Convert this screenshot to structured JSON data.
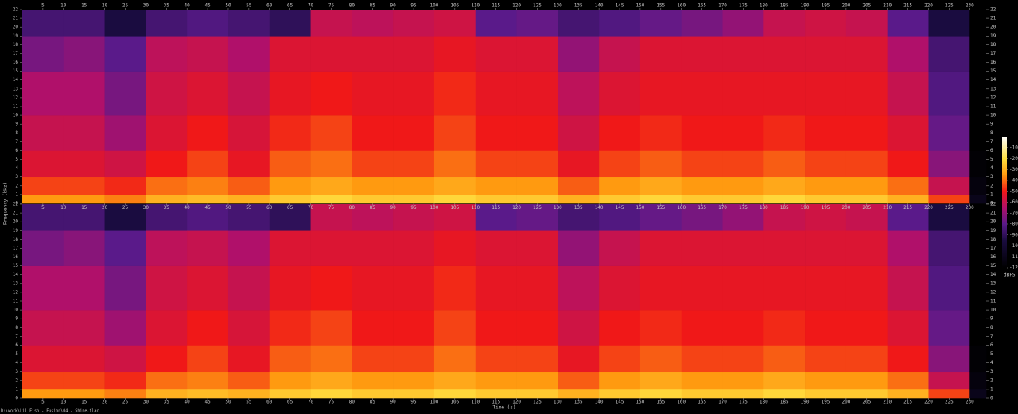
{
  "chart_data": {
    "type": "spectrogram",
    "xlabel": "Time (s)",
    "ylabel": "Frequency (kHz)",
    "colorbar_label": "dBFS",
    "footer": "D:\\work\\Lil Fish - Fusion\\04 - Shine.flac",
    "xlim": [
      0,
      234
    ],
    "xticks": [
      5,
      10,
      15,
      20,
      25,
      30,
      35,
      40,
      45,
      50,
      55,
      60,
      65,
      70,
      75,
      80,
      85,
      90,
      95,
      100,
      105,
      110,
      115,
      120,
      125,
      130,
      135,
      140,
      145,
      150,
      155,
      160,
      165,
      170,
      175,
      180,
      185,
      190,
      195,
      200,
      205,
      210,
      215,
      220,
      225,
      230
    ],
    "ylim": [
      0,
      22
    ],
    "yticks": [
      0,
      1,
      2,
      3,
      4,
      5,
      6,
      7,
      8,
      9,
      10,
      11,
      12,
      13,
      14,
      15,
      16,
      17,
      18,
      19,
      20,
      21,
      22
    ],
    "zlim": [
      -120,
      0
    ],
    "zticks": [
      -10,
      -20,
      -30,
      -40,
      -50,
      -60,
      -70,
      -80,
      -90,
      -100,
      -110,
      -120
    ],
    "colormap": [
      {
        "value": 0,
        "color": "#ffffff"
      },
      {
        "value": -20,
        "color": "#ffe040"
      },
      {
        "value": -35,
        "color": "#ff9a10"
      },
      {
        "value": -50,
        "color": "#f01818"
      },
      {
        "value": -65,
        "color": "#b0106a"
      },
      {
        "value": -80,
        "color": "#5a1a8a"
      },
      {
        "value": -95,
        "color": "#1a0c40"
      },
      {
        "value": -120,
        "color": "#000000"
      }
    ],
    "time_bins": [
      0,
      10,
      20,
      30,
      40,
      50,
      60,
      70,
      80,
      90,
      100,
      110,
      120,
      130,
      140,
      150,
      160,
      170,
      180,
      190,
      200,
      210,
      220,
      230,
      234
    ],
    "freq_bins": [
      0,
      1,
      3,
      6,
      10,
      15,
      19,
      22
    ],
    "channels": [
      {
        "values": [
          [
            -35,
            -45,
            -55,
            -60,
            -65,
            -75,
            -85
          ],
          [
            -35,
            -45,
            -55,
            -60,
            -65,
            -72,
            -85
          ],
          [
            -38,
            -48,
            -58,
            -68,
            -75,
            -80,
            -95
          ],
          [
            -30,
            -40,
            -50,
            -55,
            -58,
            -62,
            -85
          ],
          [
            -28,
            -38,
            -45,
            -50,
            -55,
            -60,
            -82
          ],
          [
            -30,
            -42,
            -52,
            -56,
            -60,
            -65,
            -85
          ],
          [
            -25,
            -35,
            -42,
            -48,
            -52,
            -55,
            -90
          ],
          [
            -22,
            -32,
            -40,
            -45,
            -50,
            -55,
            -60
          ],
          [
            -25,
            -35,
            -45,
            -50,
            -52,
            -55,
            -62
          ],
          [
            -25,
            -35,
            -45,
            -50,
            -52,
            -55,
            -60
          ],
          [
            -22,
            -32,
            -40,
            -45,
            -48,
            -52,
            -58
          ],
          [
            -25,
            -35,
            -45,
            -50,
            -52,
            -55,
            -80
          ],
          [
            -25,
            -35,
            -45,
            -50,
            -52,
            -55,
            -78
          ],
          [
            -30,
            -42,
            -52,
            -58,
            -62,
            -70,
            -85
          ],
          [
            -25,
            -35,
            -45,
            -50,
            -55,
            -60,
            -82
          ],
          [
            -22,
            -32,
            -42,
            -48,
            -52,
            -55,
            -78
          ],
          [
            -25,
            -35,
            -45,
            -50,
            -52,
            -55,
            -75
          ],
          [
            -25,
            -35,
            -45,
            -50,
            -52,
            -55,
            -70
          ],
          [
            -22,
            -32,
            -42,
            -48,
            -52,
            -55,
            -60
          ],
          [
            -25,
            -35,
            -45,
            -50,
            -52,
            -55,
            -58
          ],
          [
            -25,
            -35,
            -45,
            -50,
            -52,
            -55,
            -60
          ],
          [
            -30,
            -40,
            -50,
            -55,
            -60,
            -65,
            -80
          ],
          [
            -45,
            -60,
            -72,
            -78,
            -82,
            -85,
            -95
          ],
          [
            -110,
            -115,
            -118,
            -120,
            -120,
            -120,
            -120
          ]
        ]
      },
      {
        "values": [
          [
            -35,
            -45,
            -55,
            -60,
            -65,
            -75,
            -85
          ],
          [
            -35,
            -45,
            -55,
            -60,
            -65,
            -72,
            -85
          ],
          [
            -38,
            -48,
            -58,
            -68,
            -75,
            -80,
            -95
          ],
          [
            -30,
            -40,
            -50,
            -55,
            -58,
            -62,
            -85
          ],
          [
            -28,
            -38,
            -45,
            -50,
            -55,
            -60,
            -82
          ],
          [
            -30,
            -42,
            -52,
            -56,
            -60,
            -65,
            -85
          ],
          [
            -25,
            -35,
            -42,
            -48,
            -52,
            -55,
            -90
          ],
          [
            -22,
            -32,
            -40,
            -45,
            -50,
            -55,
            -60
          ],
          [
            -25,
            -35,
            -45,
            -50,
            -52,
            -55,
            -62
          ],
          [
            -25,
            -35,
            -45,
            -50,
            -52,
            -55,
            -60
          ],
          [
            -22,
            -32,
            -40,
            -45,
            -48,
            -52,
            -58
          ],
          [
            -25,
            -35,
            -45,
            -50,
            -52,
            -55,
            -80
          ],
          [
            -25,
            -35,
            -45,
            -50,
            -52,
            -55,
            -78
          ],
          [
            -30,
            -42,
            -52,
            -58,
            -62,
            -70,
            -85
          ],
          [
            -25,
            -35,
            -45,
            -50,
            -55,
            -60,
            -82
          ],
          [
            -22,
            -32,
            -42,
            -48,
            -52,
            -55,
            -78
          ],
          [
            -25,
            -35,
            -45,
            -50,
            -52,
            -55,
            -75
          ],
          [
            -25,
            -35,
            -45,
            -50,
            -52,
            -55,
            -70
          ],
          [
            -22,
            -32,
            -42,
            -48,
            -52,
            -55,
            -60
          ],
          [
            -25,
            -35,
            -45,
            -50,
            -52,
            -55,
            -58
          ],
          [
            -25,
            -35,
            -45,
            -50,
            -52,
            -55,
            -60
          ],
          [
            -30,
            -40,
            -50,
            -55,
            -60,
            -65,
            -80
          ],
          [
            -45,
            -60,
            -72,
            -78,
            -82,
            -85,
            -95
          ],
          [
            -110,
            -115,
            -118,
            -120,
            -120,
            -120,
            -120
          ]
        ]
      }
    ]
  }
}
